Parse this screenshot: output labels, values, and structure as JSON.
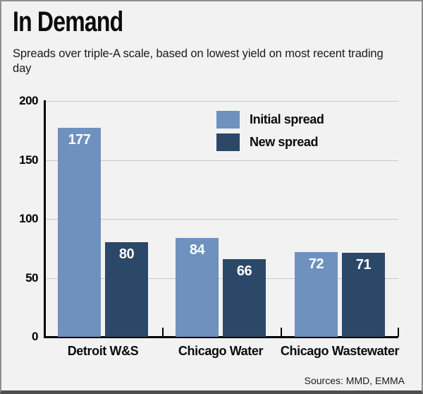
{
  "header": {
    "title": "In Demand",
    "subtitle": "Spreads over triple-A scale, based on lowest yield on most recent trading day"
  },
  "footer": {
    "sources": "Sources: MMD, EMMA"
  },
  "chart_data": {
    "type": "bar",
    "title": "In Demand",
    "subtitle": "Spreads over triple-A scale, based on lowest yield on most recent trading day",
    "categories": [
      "Detroit W&S",
      "Chicago Water",
      "Chicago Wastewater"
    ],
    "series": [
      {
        "name": "Initial spread",
        "color": "#6e91be",
        "values": [
          177,
          84,
          72
        ]
      },
      {
        "name": "New spread",
        "color": "#2c4868",
        "values": [
          80,
          66,
          71
        ]
      }
    ],
    "xlabel": "",
    "ylabel": "",
    "ylim": [
      0,
      200
    ],
    "yticks": [
      0,
      50,
      100,
      150,
      200
    ],
    "gridline_values": [
      50,
      100,
      150,
      200
    ],
    "grid": true,
    "value_labels": "inside-top-white",
    "legend_position": "inside-top-right",
    "colors": {
      "axis": "#000000",
      "grid": "#c8c8c8",
      "background": "#f2f2f2",
      "text": "#0b0b0b"
    }
  }
}
